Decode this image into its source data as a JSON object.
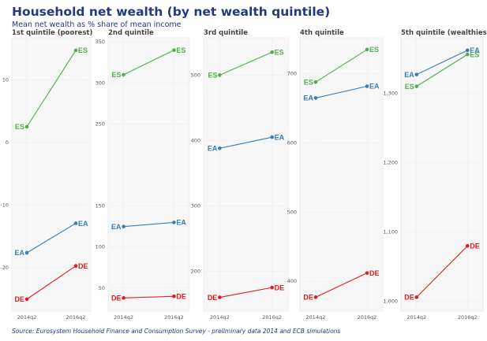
{
  "title": "Household net wealth (by net wealth quintile)",
  "subtitle": "Mean net wealth as % share of mean income",
  "source": "Source: Eurosystem Household Finance and Consumption Survey - preliminary data 2014 and ECB simulations",
  "colors": {
    "ES": "#4daf4a",
    "EA": "#377eb8",
    "DE": "#e41a1c",
    "panel_bg": "#f7f7f7"
  },
  "chart_data": [
    {
      "type": "line",
      "title": "1st quintile (poorest)",
      "x": [
        "2014q2",
        "2016q2"
      ],
      "ylim": [
        -26.9,
        16.7
      ],
      "yticks": [
        {
          "v": 10,
          "l": "10"
        },
        {
          "v": 0,
          "l": "0"
        },
        {
          "v": -10,
          "l": "-10"
        },
        {
          "v": -20,
          "l": "-20"
        }
      ],
      "series": [
        {
          "name": "ES",
          "values": [
            2.5,
            14.7
          ]
        },
        {
          "name": "EA",
          "values": [
            -17.6,
            -12.9
          ]
        },
        {
          "name": "DE",
          "values": [
            -25,
            -19.7
          ]
        }
      ]
    },
    {
      "type": "line",
      "title": "2nd quintile",
      "x": [
        "2014q2",
        "2016q2"
      ],
      "ylim": [
        22,
        355
      ],
      "yticks": [
        {
          "v": 350,
          "l": "350"
        },
        {
          "v": 300,
          "l": "300"
        },
        {
          "v": 250,
          "l": "250"
        },
        {
          "v": 150,
          "l": "150"
        },
        {
          "v": 100,
          "l": "100"
        },
        {
          "v": 50,
          "l": "50"
        }
      ],
      "series": [
        {
          "name": "ES",
          "values": [
            310,
            340
          ]
        },
        {
          "name": "EA",
          "values": [
            125,
            130
          ]
        },
        {
          "name": "DE",
          "values": [
            38,
            40
          ]
        }
      ]
    },
    {
      "type": "line",
      "title": "3rd quintile",
      "x": [
        "2014q2",
        "2016q2"
      ],
      "ylim": [
        139,
        557
      ],
      "yticks": [
        {
          "v": 500,
          "l": "500"
        },
        {
          "v": 400,
          "l": "400"
        },
        {
          "v": 300,
          "l": "300"
        },
        {
          "v": 200,
          "l": "200"
        }
      ],
      "series": [
        {
          "name": "ES",
          "values": [
            500,
            535
          ]
        },
        {
          "name": "EA",
          "values": [
            388,
            405
          ]
        },
        {
          "name": "DE",
          "values": [
            160,
            175
          ]
        }
      ]
    },
    {
      "type": "line",
      "title": "4th quintile",
      "x": [
        "2014q2",
        "2016q2"
      ],
      "ylim": [
        357,
        752
      ],
      "yticks": [
        {
          "v": 700,
          "l": "700"
        },
        {
          "v": 600,
          "l": "600"
        },
        {
          "v": 500,
          "l": "500"
        },
        {
          "v": 400,
          "l": "400"
        }
      ],
      "series": [
        {
          "name": "ES",
          "values": [
            688,
            735
          ]
        },
        {
          "name": "EA",
          "values": [
            665,
            682
          ]
        },
        {
          "name": "DE",
          "values": [
            377,
            412
          ]
        }
      ]
    },
    {
      "type": "line",
      "title": "5th quintile (wealthiest)",
      "x": [
        "2014q2",
        "2016q2"
      ],
      "ylim": [
        986,
        1380
      ],
      "yticks": [
        {
          "v": 1300,
          "l": "1,300"
        },
        {
          "v": 1200,
          "l": "1,200"
        },
        {
          "v": 1100,
          "l": "1,100"
        },
        {
          "v": 1000,
          "l": "1,000"
        }
      ],
      "series": [
        {
          "name": "EA",
          "values": [
            1327,
            1362
          ]
        },
        {
          "name": "ES",
          "values": [
            1310,
            1356
          ]
        },
        {
          "name": "DE",
          "values": [
            1006,
            1080
          ]
        }
      ]
    }
  ]
}
